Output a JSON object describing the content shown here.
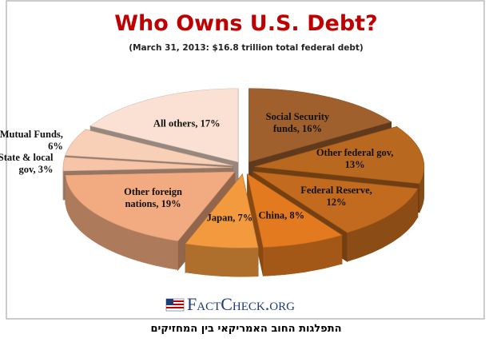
{
  "chart_data": {
    "type": "pie3d",
    "title": "Who Owns U.S. Debt?",
    "subtitle": "(March  31, 2013: $16.8 trillion total federal debt)",
    "values": [
      16,
      13,
      12,
      8,
      7,
      19,
      3,
      6,
      17
    ],
    "value_labels": [
      "Social Security funds, 16%",
      "Other federal gov, 13%",
      "Federal Reserve, 12%",
      "China, 8%",
      "Japan, 7%",
      "Other foreign nations, 19%",
      "State & local gov, 3%",
      "Mutual Funds, 6%",
      "All others, 17%"
    ],
    "colors": [
      "#a0602e",
      "#b9681f",
      "#c26a1d",
      "#e47a20",
      "#f29a3d",
      "#f2aa80",
      "#f6c4a6",
      "#f8cfb7",
      "#fbe1d3"
    ]
  },
  "logo": "FactCheck.org",
  "caption": "התפלגות החוב האמריקאי בין המחזיקים"
}
